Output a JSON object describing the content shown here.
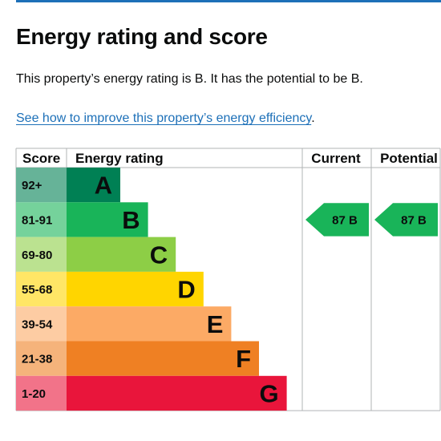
{
  "page": {
    "title": "Energy rating and score",
    "summary": "This property’s energy rating is B. It has the potential to be B.",
    "link_text": "See how to improve this property’s energy efficiency",
    "link_suffix": "."
  },
  "chart_data": {
    "type": "bar",
    "title": "",
    "headers": {
      "score": "Score",
      "rating": "Energy rating",
      "current": "Current",
      "potential": "Potential"
    },
    "bands": [
      {
        "score": "92+",
        "letter": "A",
        "color": "#008054",
        "score_color": "#66b398"
      },
      {
        "score": "81-91",
        "letter": "B",
        "color": "#19b459",
        "score_color": "#75d29b"
      },
      {
        "score": "69-80",
        "letter": "C",
        "color": "#8dce46",
        "score_color": "#bbe290"
      },
      {
        "score": "55-68",
        "letter": "D",
        "color": "#ffd500",
        "score_color": "#ffe666"
      },
      {
        "score": "39-54",
        "letter": "E",
        "color": "#fcaa65",
        "score_color": "#fdcca3"
      },
      {
        "score": "21-38",
        "letter": "F",
        "color": "#ef8023",
        "score_color": "#f5b37b"
      },
      {
        "score": "1-20",
        "letter": "G",
        "color": "#e9153b",
        "score_color": "#f27389"
      }
    ],
    "current": {
      "score": 87,
      "rating": "B",
      "label": "87 B",
      "color": "#19b459"
    },
    "potential": {
      "score": 87,
      "rating": "B",
      "label": "87 B",
      "color": "#19b459"
    }
  }
}
